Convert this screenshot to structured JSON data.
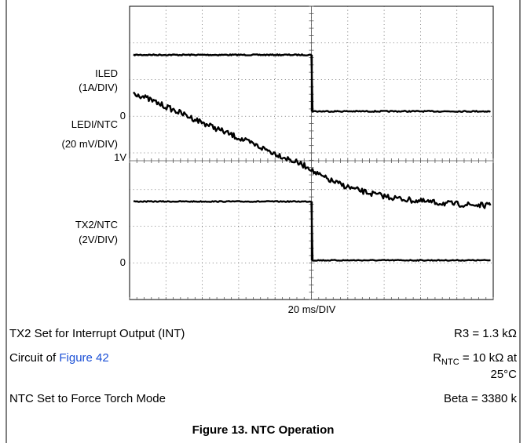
{
  "plot": {
    "labels": {
      "iled": "ILED",
      "iled_scale": "(1A/DIV)",
      "iled_zero": "0",
      "ledi": "LEDI/NTC",
      "ledi_scale": "(20 mV/DIV)",
      "ledi_ref": "1V",
      "tx2": "TX2/NTC",
      "tx2_scale": "(2V/DIV)",
      "tx2_zero": "0"
    },
    "x_scale": "20 ms/DIV"
  },
  "notes": [
    {
      "left": "TX2 Set for Interrupt Output (INT)",
      "right": "R3 = 1.3 kΩ"
    },
    {
      "left": "Circuit of ",
      "link": "Figure 42",
      "right_symbol": "R",
      "right_subscript": "NTC",
      "right": " = 10 kΩ at",
      "right_continued": "25°C"
    },
    {
      "left": "NTC Set to Force Torch Mode",
      "right": "Beta = 3380 k"
    }
  ],
  "caption": "Figure 13. NTC Operation"
}
